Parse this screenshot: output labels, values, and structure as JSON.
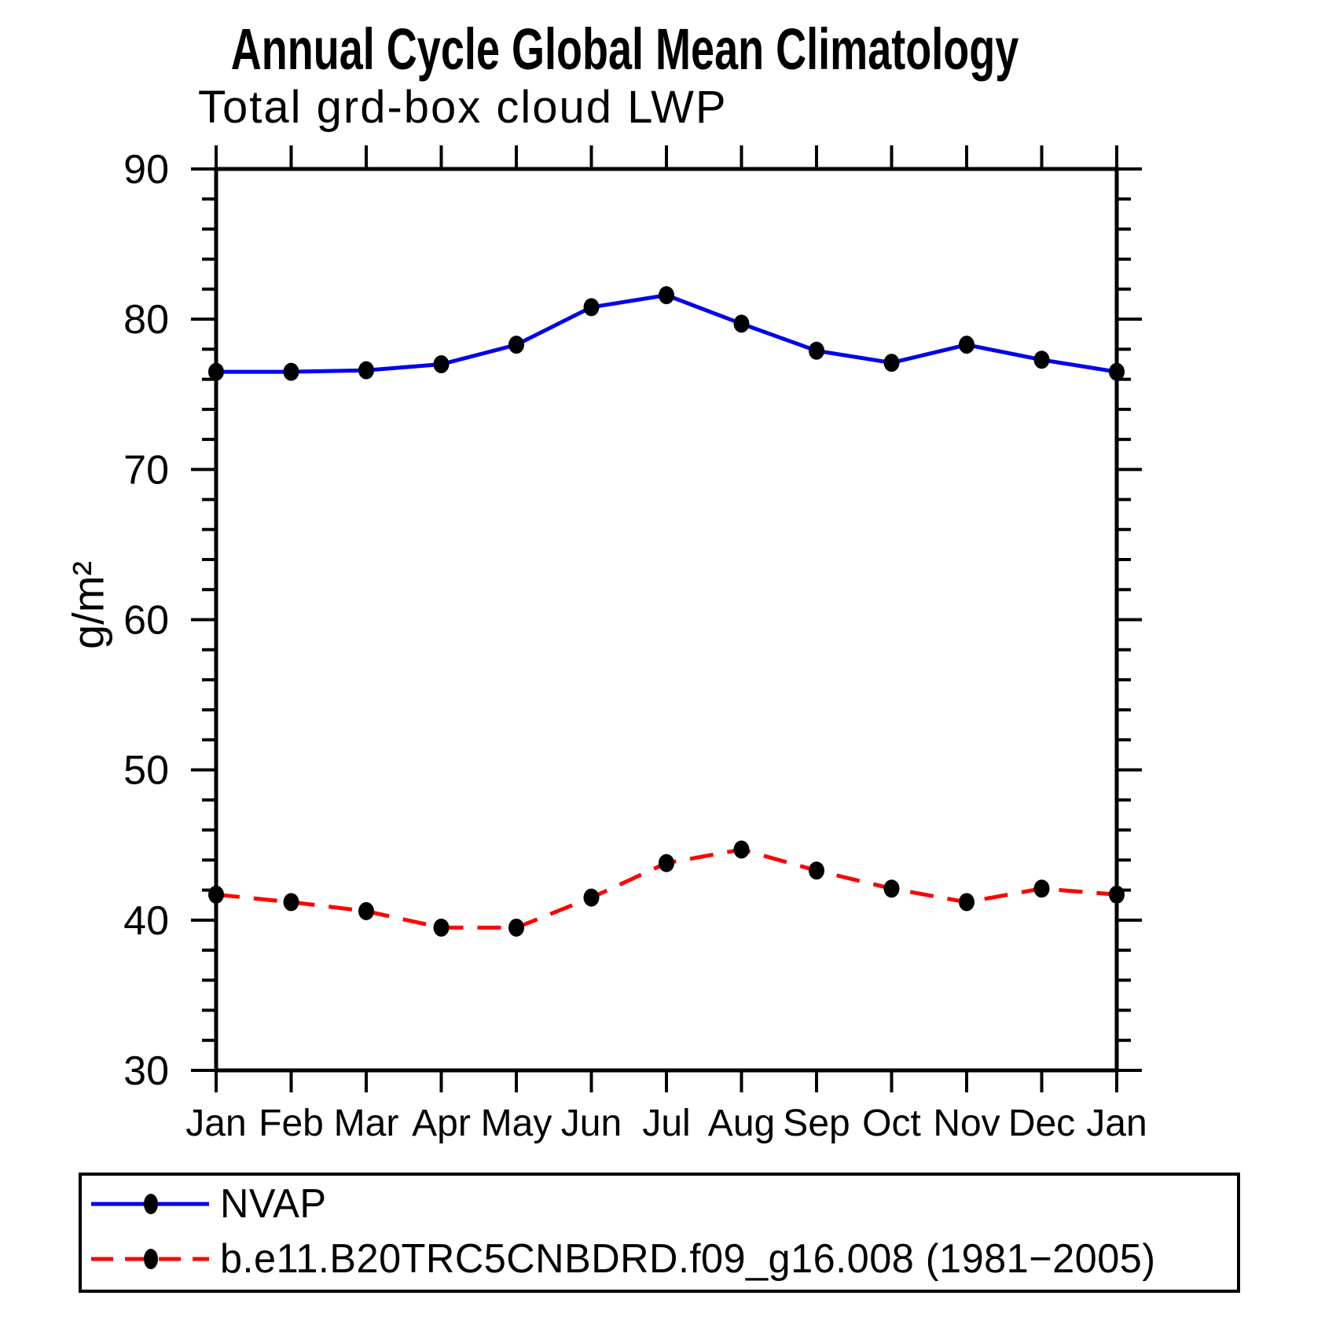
{
  "chart_data": {
    "type": "line",
    "title": "Annual Cycle Global Mean Climatology",
    "subtitle": "Total grd-box cloud LWP",
    "ylabel": "g/m²",
    "xlabel": "",
    "categories": [
      "Jan",
      "Feb",
      "Mar",
      "Apr",
      "May",
      "Jun",
      "Jul",
      "Aug",
      "Sep",
      "Oct",
      "Nov",
      "Dec",
      "Jan"
    ],
    "series": [
      {
        "name": "NVAP",
        "color": "#0000ee",
        "line_style": "solid",
        "marker": "filled-circle",
        "marker_color": "#000000",
        "values": [
          76.5,
          76.5,
          76.6,
          77.0,
          78.3,
          80.8,
          81.6,
          79.7,
          77.9,
          77.1,
          78.3,
          77.3,
          76.5
        ]
      },
      {
        "name": "b.e11.B20TRC5CNBDRD.f09_g16.008 (1981−2005)",
        "color": "#ff0000",
        "line_style": "dashed",
        "marker": "filled-circle",
        "marker_color": "#000000",
        "values": [
          41.7,
          41.2,
          40.6,
          39.5,
          39.5,
          41.5,
          43.8,
          44.7,
          43.3,
          42.1,
          41.2,
          42.1,
          41.7
        ]
      }
    ],
    "ylim": [
      30,
      90
    ],
    "ytick_step": 10,
    "minor_tick_step": 2,
    "grid": false,
    "legend_position": "bottom-left-box",
    "axis_color": "#000000"
  }
}
